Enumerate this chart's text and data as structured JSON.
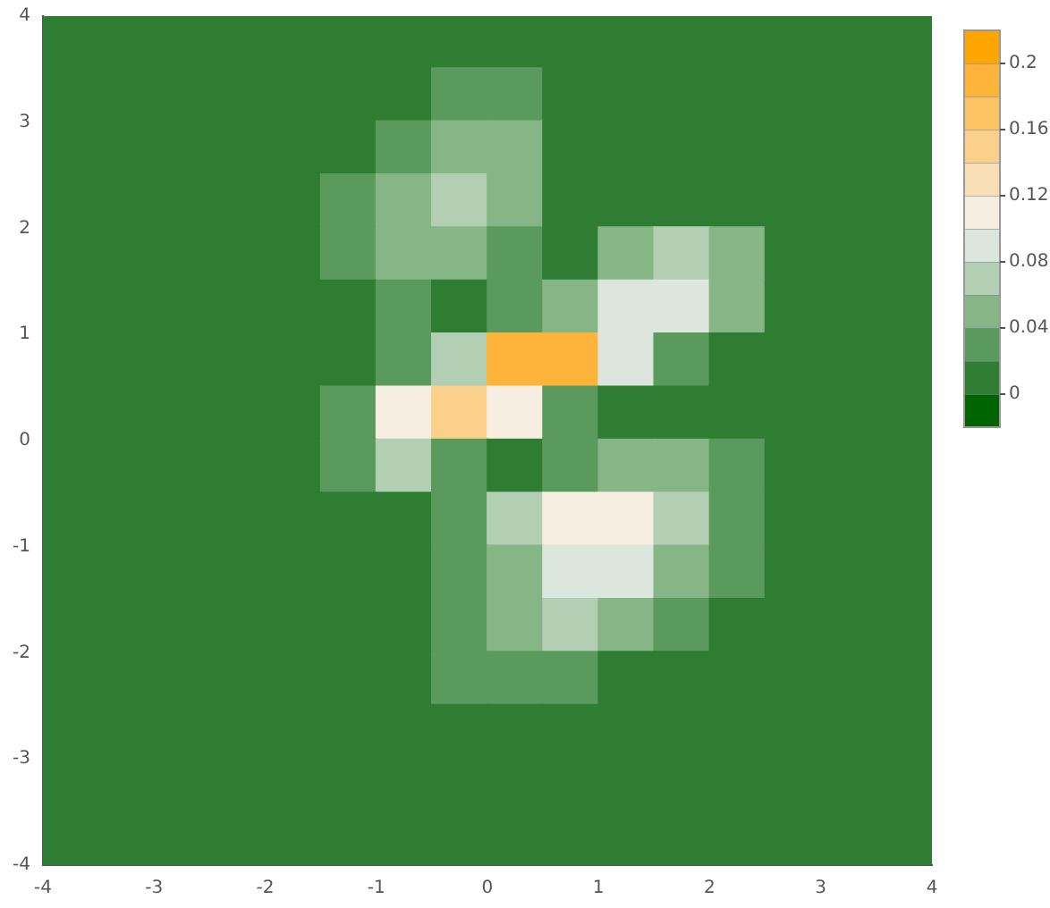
{
  "chart_data": {
    "type": "scatter",
    "marker": "square",
    "x": [
      -3.75,
      -3.25,
      -2.75,
      -2.25,
      -1.75,
      -1.25,
      -0.75,
      -0.25,
      0.25,
      0.75,
      1.25,
      1.75,
      2.25,
      2.75,
      3.25,
      3.75,
      -3.75,
      -3.25,
      -2.75,
      -2.25,
      -1.75,
      -1.25,
      -0.75,
      -0.25,
      0.25,
      0.75,
      1.25,
      1.75,
      2.25,
      2.75,
      3.25,
      3.75,
      -3.75,
      -3.25,
      -2.75,
      -2.25,
      -1.75,
      -1.25,
      -0.75,
      -0.25,
      0.25,
      0.75,
      1.25,
      1.75,
      2.25,
      2.75,
      3.25,
      3.75,
      -3.75,
      -3.25,
      -2.75,
      -2.25,
      -1.75,
      -1.25,
      -0.75,
      -0.25,
      0.25,
      0.75,
      1.25,
      1.75,
      2.25,
      2.75,
      3.25,
      3.75,
      -3.75,
      -3.25,
      -2.75,
      -2.25,
      -1.75,
      -1.25,
      -0.75,
      -0.25,
      0.25,
      0.75,
      1.25,
      1.75,
      2.25,
      2.75,
      3.25,
      3.75,
      -3.75,
      -3.25,
      -2.75,
      -2.25,
      -1.75,
      -1.25,
      -0.75,
      -0.25,
      0.25,
      0.75,
      1.25,
      1.75,
      2.25,
      2.75,
      3.25,
      3.75,
      -3.75,
      -3.25,
      -2.75,
      -2.25,
      -1.75,
      -1.25,
      -0.75,
      -0.25,
      0.25,
      0.75,
      1.25,
      1.75,
      2.25,
      2.75,
      3.25,
      3.75,
      -3.75,
      -3.25,
      -2.75,
      -2.25,
      -1.75,
      -1.25,
      -0.75,
      -0.25,
      0.25,
      0.75,
      1.25,
      1.75,
      2.25,
      2.75,
      3.25,
      3.75,
      -3.75,
      -3.25,
      -2.75,
      -2.25,
      -1.75,
      -1.25,
      -0.75,
      -0.25,
      0.25,
      0.75,
      1.25,
      1.75,
      2.25,
      2.75,
      3.25,
      3.75,
      -3.75,
      -3.25,
      -2.75,
      -2.25,
      -1.75,
      -1.25,
      -0.75,
      -0.25,
      0.25,
      0.75,
      1.25,
      1.75,
      2.25,
      2.75,
      3.25,
      3.75,
      -3.75,
      -3.25,
      -2.75,
      -2.25,
      -1.75,
      -1.25,
      -0.75,
      -0.25,
      0.25,
      0.75,
      1.25,
      1.75,
      2.25,
      2.75,
      3.25,
      3.75,
      -3.75,
      -3.25,
      -2.75,
      -2.25,
      -1.75,
      -1.25,
      -0.75,
      -0.25,
      0.25,
      0.75,
      1.25,
      1.75,
      2.25,
      2.75,
      3.25,
      3.75,
      -3.75,
      -3.25,
      -2.75,
      -2.25,
      -1.75,
      -1.25,
      -0.75,
      -0.25,
      0.25,
      0.75,
      1.25,
      1.75,
      2.25,
      2.75,
      3.25,
      3.75,
      -3.75,
      -3.25,
      -2.75,
      -2.25,
      -1.75,
      -1.25,
      -0.75,
      -0.25,
      0.25,
      0.75,
      1.25,
      1.75,
      2.25,
      2.75,
      3.25,
      3.75,
      -3.75,
      -3.25,
      -2.75,
      -2.25,
      -1.75,
      -1.25,
      -0.75,
      -0.25,
      0.25,
      0.75,
      1.25,
      1.75,
      2.25,
      2.75,
      3.25,
      3.75,
      -3.75,
      -3.25,
      -2.75,
      -2.25,
      -1.75,
      -1.25,
      -0.75,
      -0.25,
      0.25,
      0.75,
      1.25,
      1.75,
      2.25,
      2.75,
      3.25,
      3.75
    ],
    "values": [
      3.75,
      3.75,
      3.75,
      3.75,
      3.75,
      3.75,
      3.75,
      3.75,
      3.75,
      3.75,
      3.75,
      3.75,
      3.75,
      3.75,
      3.75,
      3.75,
      3.25,
      3.25,
      3.25,
      3.25,
      3.25,
      3.25,
      3.25,
      3.25,
      3.25,
      3.25,
      3.25,
      3.25,
      3.25,
      3.25,
      3.25,
      3.25,
      2.75,
      2.75,
      2.75,
      2.75,
      2.75,
      2.75,
      2.75,
      2.75,
      2.75,
      2.75,
      2.75,
      2.75,
      2.75,
      2.75,
      2.75,
      2.75,
      2.25,
      2.25,
      2.25,
      2.25,
      2.25,
      2.25,
      2.25,
      2.25,
      2.25,
      2.25,
      2.25,
      2.25,
      2.25,
      2.25,
      2.25,
      2.25,
      1.75,
      1.75,
      1.75,
      1.75,
      1.75,
      1.75,
      1.75,
      1.75,
      1.75,
      1.75,
      1.75,
      1.75,
      1.75,
      1.75,
      1.75,
      1.75,
      1.25,
      1.25,
      1.25,
      1.25,
      1.25,
      1.25,
      1.25,
      1.25,
      1.25,
      1.25,
      1.25,
      1.25,
      1.25,
      1.25,
      1.25,
      1.25,
      0.75,
      0.75,
      0.75,
      0.75,
      0.75,
      0.75,
      0.75,
      0.75,
      0.75,
      0.75,
      0.75,
      0.75,
      0.75,
      0.75,
      0.75,
      0.75,
      0.25,
      0.25,
      0.25,
      0.25,
      0.25,
      0.25,
      0.25,
      0.25,
      0.25,
      0.25,
      0.25,
      0.25,
      0.25,
      0.25,
      0.25,
      0.25,
      -0.25,
      -0.25,
      -0.25,
      -0.25,
      -0.25,
      -0.25,
      -0.25,
      -0.25,
      -0.25,
      -0.25,
      -0.25,
      -0.25,
      -0.25,
      -0.25,
      -0.25,
      -0.25,
      -0.75,
      -0.75,
      -0.75,
      -0.75,
      -0.75,
      -0.75,
      -0.75,
      -0.75,
      -0.75,
      -0.75,
      -0.75,
      -0.75,
      -0.75,
      -0.75,
      -0.75,
      -0.75,
      -1.25,
      -1.25,
      -1.25,
      -1.25,
      -1.25,
      -1.25,
      -1.25,
      -1.25,
      -1.25,
      -1.25,
      -1.25,
      -1.25,
      -1.25,
      -1.25,
      -1.25,
      -1.25,
      -1.75,
      -1.75,
      -1.75,
      -1.75,
      -1.75,
      -1.75,
      -1.75,
      -1.75,
      -1.75,
      -1.75,
      -1.75,
      -1.75,
      -1.75,
      -1.75,
      -1.75,
      -1.75,
      -2.25,
      -2.25,
      -2.25,
      -2.25,
      -2.25,
      -2.25,
      -2.25,
      -2.25,
      -2.25,
      -2.25,
      -2.25,
      -2.25,
      -2.25,
      -2.25,
      -2.25,
      -2.25,
      -2.75,
      -2.75,
      -2.75,
      -2.75,
      -2.75,
      -2.75,
      -2.75,
      -2.75,
      -2.75,
      -2.75,
      -2.75,
      -2.75,
      -2.75,
      -2.75,
      -2.75,
      -2.75,
      -3.25,
      -3.25,
      -3.25,
      -3.25,
      -3.25,
      -3.25,
      -3.25,
      -3.25,
      -3.25,
      -3.25,
      -3.25,
      -3.25,
      -3.25,
      -3.25,
      -3.25,
      -3.25,
      -3.75,
      -3.75,
      -3.75,
      -3.75,
      -3.75,
      -3.75,
      -3.75,
      -3.75,
      -3.75,
      -3.75,
      -3.75,
      -3.75,
      -3.75,
      -3.75,
      -3.75,
      -3.75
    ],
    "cvalues": [
      0.01,
      0.01,
      0.01,
      0.01,
      0.01,
      0.01,
      0.01,
      0.01,
      0.01,
      0.01,
      0.01,
      0.01,
      0.01,
      0.01,
      0.01,
      0.01,
      0.01,
      0.01,
      0.01,
      0.01,
      0.01,
      0.01,
      0.01,
      0.03,
      0.03,
      0.01,
      0.01,
      0.01,
      0.01,
      0.01,
      0.01,
      0.01,
      0.01,
      0.01,
      0.01,
      0.01,
      0.01,
      0.01,
      0.03,
      0.05,
      0.05,
      0.01,
      0.01,
      0.01,
      0.01,
      0.01,
      0.01,
      0.01,
      0.01,
      0.01,
      0.01,
      0.01,
      0.01,
      0.03,
      0.05,
      0.07,
      0.05,
      0.01,
      0.01,
      0.01,
      0.01,
      0.01,
      0.01,
      0.01,
      0.01,
      0.01,
      0.01,
      0.01,
      0.01,
      0.03,
      0.05,
      0.05,
      0.03,
      0.01,
      0.05,
      0.07,
      0.05,
      0.01,
      0.01,
      0.01,
      0.01,
      0.01,
      0.01,
      0.01,
      0.01,
      0.01,
      0.03,
      0.01,
      0.03,
      0.05,
      0.09,
      0.09,
      0.05,
      0.01,
      0.01,
      0.01,
      0.01,
      0.01,
      0.01,
      0.01,
      0.01,
      0.01,
      0.03,
      0.07,
      0.19,
      0.19,
      0.09,
      0.03,
      0.01,
      0.01,
      0.01,
      0.01,
      0.01,
      0.01,
      0.01,
      0.01,
      0.01,
      0.03,
      0.11,
      0.15,
      0.11,
      0.03,
      0.01,
      0.01,
      0.01,
      0.01,
      0.01,
      0.01,
      0.01,
      0.01,
      0.01,
      0.01,
      0.01,
      0.03,
      0.07,
      0.03,
      0.01,
      0.03,
      0.05,
      0.05,
      0.03,
      0.01,
      0.01,
      0.01,
      0.01,
      0.01,
      0.01,
      0.01,
      0.01,
      0.01,
      0.01,
      0.03,
      0.07,
      0.11,
      0.11,
      0.07,
      0.03,
      0.01,
      0.01,
      0.01,
      0.01,
      0.01,
      0.01,
      0.01,
      0.01,
      0.01,
      0.01,
      0.03,
      0.05,
      0.09,
      0.09,
      0.05,
      0.03,
      0.01,
      0.01,
      0.01,
      0.01,
      0.01,
      0.01,
      0.01,
      0.01,
      0.01,
      0.01,
      0.03,
      0.05,
      0.07,
      0.05,
      0.03,
      0.01,
      0.01,
      0.01,
      0.01,
      0.01,
      0.01,
      0.01,
      0.01,
      0.01,
      0.01,
      0.01,
      0.03,
      0.03,
      0.03,
      0.01,
      0.01,
      0.01,
      0.01,
      0.01,
      0.01,
      0.01,
      0.01,
      0.01,
      0.01,
      0.01,
      0.01,
      0.01,
      0.01,
      0.01,
      0.01,
      0.01,
      0.01,
      0.01,
      0.01,
      0.01,
      0.01,
      0.01,
      0.01,
      0.01,
      0.01,
      0.01,
      0.01,
      0.01,
      0.01,
      0.01,
      0.01,
      0.01,
      0.01,
      0.01,
      0.01,
      0.01,
      0.01,
      0.01,
      0.01,
      0.01,
      0.01,
      0.01,
      0.01,
      0.01,
      0.01,
      0.01,
      0.01,
      0.01,
      0.01,
      0.01,
      0.01,
      0.01,
      0.01
    ],
    "xlim": [
      -4,
      4
    ],
    "xticks": [
      -4,
      -3,
      -2,
      -1,
      0,
      1,
      2,
      3,
      4
    ],
    "ylim": [
      -4,
      4
    ],
    "yticks": [
      -4,
      -3,
      -2,
      -1,
      0,
      1,
      2,
      3,
      4
    ],
    "clim": [
      -0.02,
      0.22
    ],
    "cticks": [
      0,
      0.04,
      0.08,
      0.12,
      0.16,
      0.2
    ],
    "grid": false,
    "legend": false
  }
}
